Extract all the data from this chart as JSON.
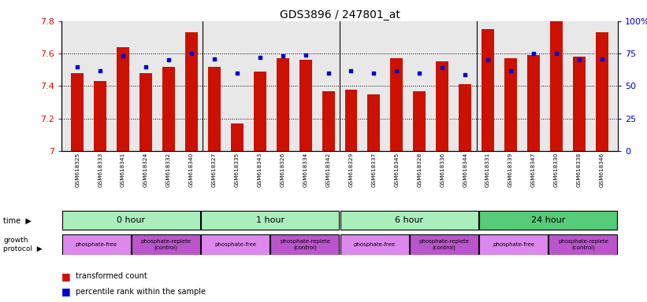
{
  "title": "GDS3896 / 247801_at",
  "samples": [
    "GSM618325",
    "GSM618333",
    "GSM618341",
    "GSM618324",
    "GSM618332",
    "GSM618340",
    "GSM618327",
    "GSM618335",
    "GSM618343",
    "GSM618326",
    "GSM618334",
    "GSM618342",
    "GSM618329",
    "GSM618337",
    "GSM618345",
    "GSM618328",
    "GSM618336",
    "GSM618344",
    "GSM618331",
    "GSM618339",
    "GSM618347",
    "GSM618330",
    "GSM618338",
    "GSM618346"
  ],
  "bar_values": [
    7.48,
    7.43,
    7.64,
    7.48,
    7.52,
    7.73,
    7.52,
    7.17,
    7.49,
    7.57,
    7.56,
    7.37,
    7.38,
    7.35,
    7.57,
    7.37,
    7.55,
    7.41,
    7.75,
    7.57,
    7.59,
    7.8,
    7.58,
    7.73
  ],
  "percentile_values": [
    65,
    62,
    73,
    65,
    70,
    75,
    71,
    60,
    72,
    73,
    74,
    60,
    62,
    60,
    62,
    60,
    64,
    59,
    70,
    62,
    75,
    75,
    70,
    71
  ],
  "ymin": 7.0,
  "ymax": 7.8,
  "yticks": [
    7.0,
    7.2,
    7.4,
    7.6,
    7.8
  ],
  "ytick_labels": [
    "7",
    "7.2",
    "7.4",
    "7.6",
    "7.8"
  ],
  "right_yticks": [
    0,
    25,
    50,
    75,
    100
  ],
  "right_ytick_labels": [
    "0",
    "25",
    "50",
    "75",
    "100%"
  ],
  "bar_color": "#CC1100",
  "dot_color": "#0000CC",
  "left_tick_color": "#CC1100",
  "right_tick_color": "#0000CC",
  "time_labels": [
    "0 hour",
    "1 hour",
    "6 hour",
    "24 hour"
  ],
  "time_starts": [
    0,
    6,
    12,
    18
  ],
  "time_ends": [
    6,
    12,
    18,
    24
  ],
  "time_colors": [
    "#AAEEBB",
    "#AAEEBB",
    "#AAEEBB",
    "#55CC77"
  ],
  "proto_labels": [
    "phosphate-free",
    "phosphate-replete\n(control)",
    "phosphate-free",
    "phosphate-replete\n(control)",
    "phosphate-free",
    "phosphate-replete\n(control)",
    "phosphate-free",
    "phosphate-replete\n(control)"
  ],
  "proto_starts": [
    0,
    3,
    6,
    9,
    12,
    15,
    18,
    21
  ],
  "proto_ends": [
    3,
    6,
    9,
    12,
    15,
    18,
    21,
    24
  ],
  "proto_colors": [
    "#DD88EE",
    "#BB55CC",
    "#DD88EE",
    "#BB55CC",
    "#DD88EE",
    "#BB55CC",
    "#DD88EE",
    "#BB55CC"
  ],
  "bg_color": "#E8E8E8"
}
